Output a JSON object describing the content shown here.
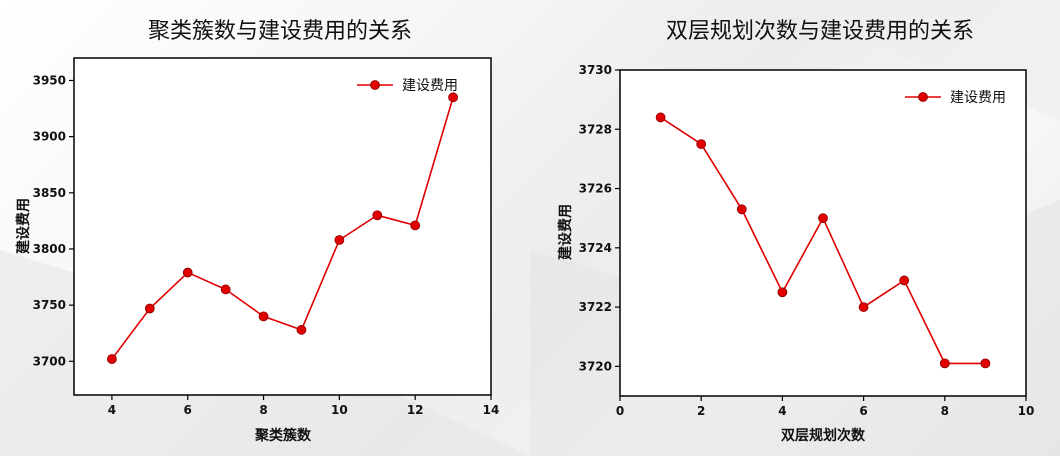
{
  "chart_data": [
    {
      "type": "line",
      "title": "聚类簇数与建设费用的关系",
      "xlabel": "聚类簇数",
      "ylabel": "建设费用",
      "xlim": [
        3,
        14
      ],
      "ylim": [
        3670,
        3970
      ],
      "xticks": [
        4,
        6,
        8,
        10,
        12,
        14
      ],
      "yticks": [
        3700,
        3750,
        3800,
        3850,
        3900,
        3950
      ],
      "legend": "top-right",
      "grid": false,
      "series": [
        {
          "name": "建设费用",
          "color": "#e00000",
          "x": [
            4,
            5,
            6,
            7,
            8,
            9,
            10,
            11,
            12,
            13
          ],
          "y": [
            3702,
            3747,
            3779,
            3764,
            3740,
            3728,
            3808,
            3830,
            3821,
            3935
          ]
        }
      ]
    },
    {
      "type": "line",
      "title": "双层规划次数与建设费用的关系",
      "xlabel": "双层规划次数",
      "ylabel": "建设费用",
      "xlim": [
        0,
        10
      ],
      "ylim": [
        3719,
        3730
      ],
      "xticks": [
        0,
        2,
        4,
        6,
        8,
        10
      ],
      "yticks": [
        3720,
        3722,
        3724,
        3726,
        3728,
        3730
      ],
      "legend": "top-right",
      "grid": false,
      "series": [
        {
          "name": "建设费用",
          "color": "#e00000",
          "x": [
            1,
            2,
            3,
            4,
            5,
            6,
            7,
            8,
            9
          ],
          "y": [
            3728.4,
            3727.5,
            3725.3,
            3722.5,
            3725.0,
            3722.0,
            3722.9,
            3720.1,
            3720.1
          ]
        }
      ]
    }
  ]
}
